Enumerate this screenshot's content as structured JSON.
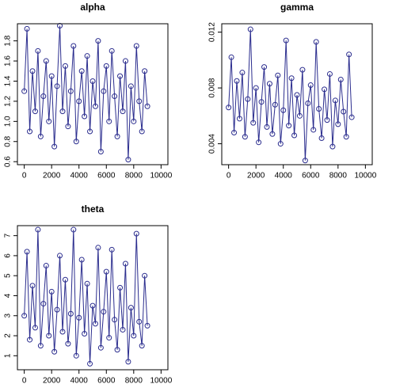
{
  "chart_data": [
    {
      "type": "line",
      "title": "alpha",
      "color": "#2b2d8e",
      "markers": true,
      "x": [
        0,
        200,
        400,
        600,
        800,
        1000,
        1200,
        1400,
        1600,
        1800,
        2000,
        2200,
        2400,
        2600,
        2800,
        3000,
        3200,
        3400,
        3600,
        3800,
        4000,
        4200,
        4400,
        4600,
        4800,
        5000,
        5200,
        5400,
        5600,
        5800,
        6000,
        6200,
        6400,
        6600,
        6800,
        7000,
        7200,
        7400,
        7600,
        7800,
        8000,
        8200,
        8400,
        8600,
        8800,
        9000
      ],
      "values": [
        1.3,
        1.92,
        0.9,
        1.5,
        1.1,
        1.7,
        0.85,
        1.25,
        1.6,
        1.0,
        1.45,
        0.75,
        1.35,
        1.95,
        1.1,
        1.55,
        0.95,
        1.3,
        1.75,
        0.8,
        1.2,
        1.5,
        1.05,
        1.65,
        0.9,
        1.4,
        1.15,
        1.8,
        0.7,
        1.3,
        1.55,
        1.0,
        1.7,
        1.25,
        0.85,
        1.45,
        1.1,
        1.6,
        0.62,
        1.35,
        1.0,
        1.75,
        1.2,
        0.9,
        1.5,
        1.15
      ],
      "xlim": [
        -500,
        10500
      ],
      "xticks": [
        0,
        2000,
        4000,
        6000,
        8000,
        10000
      ],
      "ylim": [
        0.57,
        1.97
      ],
      "yticks": [
        0.6,
        0.8,
        {
          "value": 1,
          "label": "1.0"
        },
        1.2,
        1.4,
        1.6,
        1.8
      ]
    },
    {
      "type": "line",
      "title": "gamma",
      "color": "#2b2d8e",
      "markers": true,
      "x": [
        0,
        200,
        400,
        600,
        800,
        1000,
        1200,
        1400,
        1600,
        1800,
        2000,
        2200,
        2400,
        2600,
        2800,
        3000,
        3200,
        3400,
        3600,
        3800,
        4000,
        4200,
        4400,
        4600,
        4800,
        5000,
        5200,
        5400,
        5600,
        5800,
        6000,
        6200,
        6400,
        6600,
        6800,
        7000,
        7200,
        7400,
        7600,
        7800,
        8000,
        8200,
        8400,
        8600,
        8800,
        9000
      ],
      "values": [
        0.0066,
        0.0102,
        0.0048,
        0.0085,
        0.0058,
        0.0091,
        0.0045,
        0.0072,
        0.0122,
        0.0055,
        0.008,
        0.0041,
        0.007,
        0.0095,
        0.0052,
        0.0083,
        0.0047,
        0.0068,
        0.0089,
        0.004,
        0.0064,
        0.0114,
        0.0053,
        0.0087,
        0.0046,
        0.0075,
        0.006,
        0.0093,
        0.0028,
        0.0069,
        0.0082,
        0.005,
        0.0113,
        0.0065,
        0.0044,
        0.0079,
        0.0057,
        0.009,
        0.0038,
        0.0071,
        0.0054,
        0.0086,
        0.0063,
        0.0045,
        0.0104,
        0.0059
      ],
      "xlim": [
        -500,
        10500
      ],
      "xticks": [
        0,
        2000,
        4000,
        6000,
        8000,
        10000
      ],
      "ylim": [
        0.0025,
        0.0126
      ],
      "yticks": [
        0.004,
        0.008,
        0.012
      ]
    },
    {
      "type": "line",
      "title": "theta",
      "color": "#2b2d8e",
      "markers": true,
      "x": [
        0,
        200,
        400,
        600,
        800,
        1000,
        1200,
        1400,
        1600,
        1800,
        2000,
        2200,
        2400,
        2600,
        2800,
        3000,
        3200,
        3400,
        3600,
        3800,
        4000,
        4200,
        4400,
        4600,
        4800,
        5000,
        5200,
        5400,
        5600,
        5800,
        6000,
        6200,
        6400,
        6600,
        6800,
        7000,
        7200,
        7400,
        7600,
        7800,
        8000,
        8200,
        8400,
        8600,
        8800,
        9000
      ],
      "values": [
        3.0,
        6.2,
        1.8,
        4.5,
        2.4,
        7.3,
        1.5,
        3.6,
        5.5,
        2.0,
        4.2,
        1.2,
        3.3,
        6.0,
        2.2,
        4.8,
        1.6,
        3.1,
        7.3,
        1.0,
        2.9,
        5.8,
        2.1,
        4.6,
        0.6,
        3.5,
        2.6,
        6.4,
        1.4,
        3.2,
        5.2,
        1.9,
        6.3,
        2.8,
        1.3,
        4.4,
        2.3,
        5.6,
        0.7,
        3.4,
        2.0,
        7.1,
        2.7,
        1.5,
        5.0,
        2.5
      ],
      "xlim": [
        -500,
        10500
      ],
      "xticks": [
        0,
        2000,
        4000,
        6000,
        8000,
        10000
      ],
      "ylim": [
        0.3,
        7.5
      ],
      "yticks": [
        1,
        2,
        3,
        4,
        5,
        6,
        7
      ]
    }
  ]
}
